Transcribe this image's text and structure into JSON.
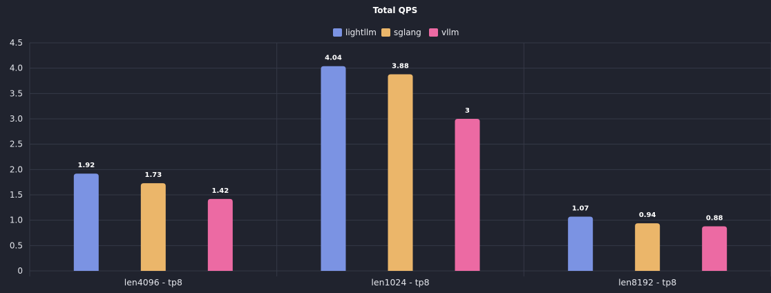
{
  "chart_data": {
    "type": "bar",
    "title": "Total QPS",
    "xlabel": "",
    "ylabel": "",
    "categories": [
      "len4096 - tp8",
      "len1024 - tp8",
      "len8192 - tp8"
    ],
    "series": [
      {
        "name": "lightllm",
        "color": "#7b93e3",
        "values": [
          1.92,
          4.04,
          1.07
        ],
        "labels": [
          "1.92",
          "4.04",
          "1.07"
        ]
      },
      {
        "name": "sglang",
        "color": "#ebb66a",
        "values": [
          1.73,
          3.88,
          0.94
        ],
        "labels": [
          "1.73",
          "3.88",
          "0.94"
        ]
      },
      {
        "name": "vllm",
        "color": "#ec6aa3",
        "values": [
          1.42,
          3.0,
          0.88
        ],
        "labels": [
          "1.42",
          "3",
          "0.88"
        ]
      }
    ],
    "ylim": [
      0,
      4.5
    ],
    "yticks": [
      0,
      0.5,
      1.0,
      1.5,
      2.0,
      2.5,
      3.0,
      3.5,
      4.0,
      4.5
    ],
    "ytick_labels": [
      "0",
      "0.5",
      "1.0",
      "1.5",
      "2.0",
      "2.5",
      "3.0",
      "3.5",
      "4.0",
      "4.5"
    ],
    "grid": true,
    "legend": "top-center",
    "background_color": "#20232e",
    "grid_color": "#353947"
  }
}
